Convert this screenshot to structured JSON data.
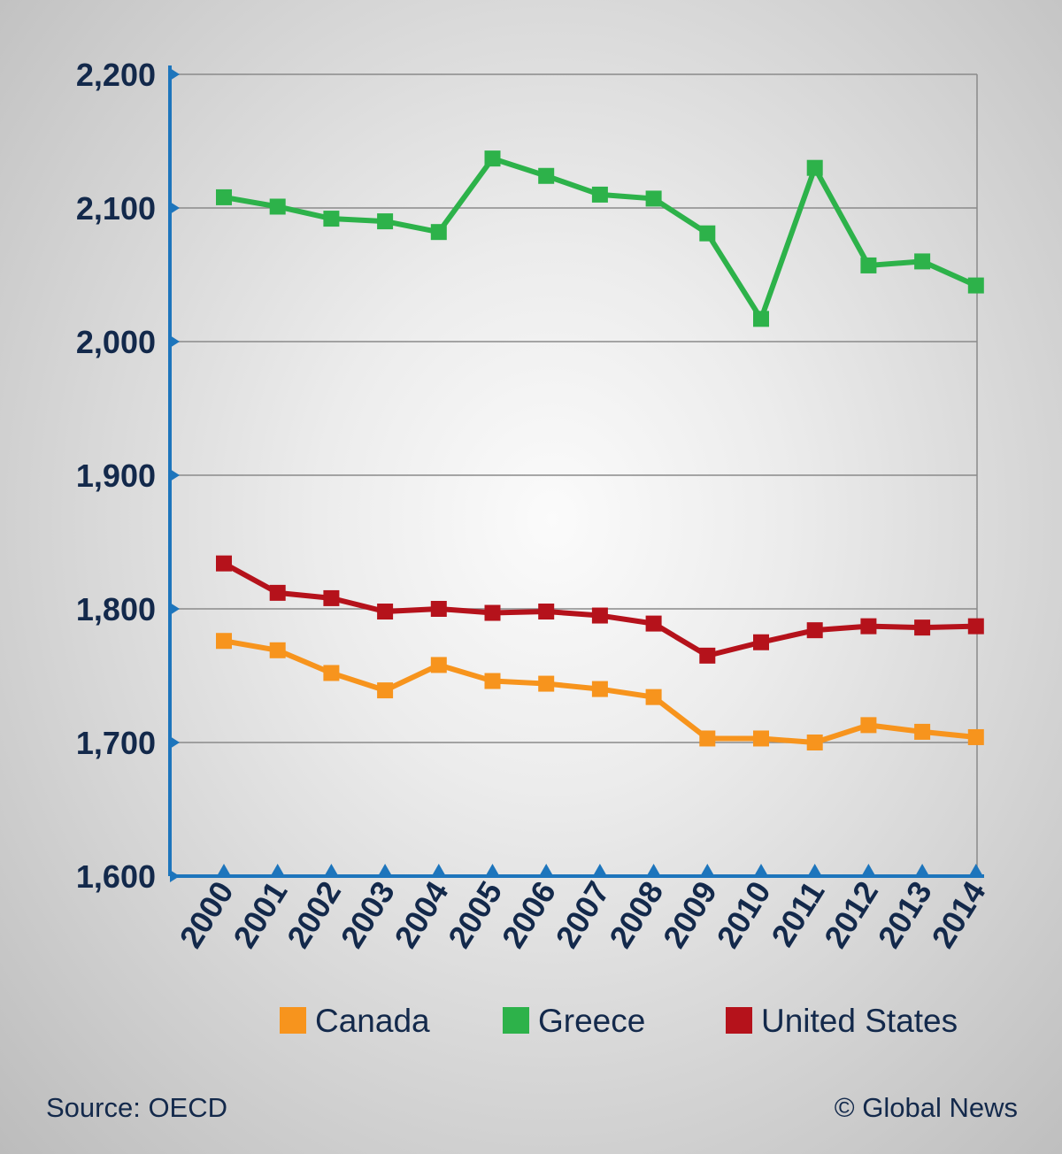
{
  "chart_data": {
    "type": "line",
    "title": "",
    "xlabel": "",
    "ylabel": "",
    "x": [
      "2000",
      "2001",
      "2002",
      "2003",
      "2004",
      "2005",
      "2006",
      "2007",
      "2008",
      "2009",
      "2010",
      "2011",
      "2012",
      "2013",
      "2014"
    ],
    "ylim": [
      1600,
      2200
    ],
    "yticks": [
      1600,
      1700,
      1800,
      1900,
      2000,
      2100,
      2200
    ],
    "ytick_labels": [
      "1,600",
      "1,700",
      "1,800",
      "1,900",
      "2,000",
      "2,100",
      "2,200"
    ],
    "grid": true,
    "legend_position": "bottom",
    "series": [
      {
        "name": "Canada",
        "color": "#f7941d",
        "values": [
          1776,
          1769,
          1752,
          1739,
          1758,
          1746,
          1744,
          1740,
          1734,
          1703,
          1703,
          1700,
          1713,
          1708,
          1704
        ]
      },
      {
        "name": "Greece",
        "color": "#2db24a",
        "values": [
          2108,
          2101,
          2092,
          2090,
          2082,
          2137,
          2124,
          2110,
          2107,
          2081,
          2017,
          2130,
          2057,
          2060,
          2042
        ]
      },
      {
        "name": "United States",
        "color": "#b5121b",
        "values": [
          1834,
          1812,
          1808,
          1798,
          1800,
          1797,
          1798,
          1795,
          1789,
          1765,
          1775,
          1784,
          1787,
          1786,
          1787
        ]
      }
    ]
  },
  "source": "Source: OECD",
  "credit": "© Global News"
}
